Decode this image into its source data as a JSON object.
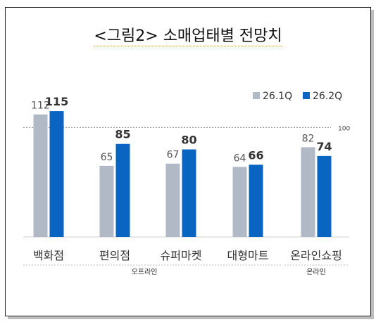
{
  "title": "<그림2> 소매업태별 전망치",
  "chart_data": {
    "type": "bar",
    "categories": [
      "백화점",
      "편의점",
      "슈퍼마켓",
      "대형마트",
      "온라인쇼핑"
    ],
    "series": [
      {
        "name": "26.1Q",
        "values": [
          112,
          65,
          67,
          64,
          82
        ],
        "color": "#b1b8c6"
      },
      {
        "name": "26.2Q",
        "values": [
          115,
          85,
          80,
          66,
          74
        ],
        "color": "#0a64c2"
      }
    ],
    "reference_line": {
      "value": 100,
      "label": "100"
    },
    "groups": [
      {
        "label": "오프라인",
        "categories": [
          0,
          1,
          2,
          3
        ]
      },
      {
        "label": "온라인",
        "categories": [
          4
        ]
      }
    ],
    "ylim": [
      0,
      140
    ],
    "legend_position": "top-right"
  }
}
